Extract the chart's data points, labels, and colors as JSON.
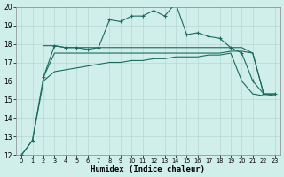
{
  "title": "",
  "xlabel": "Humidex (Indice chaleur)",
  "xlim": [
    -0.5,
    23.5
  ],
  "ylim": [
    12,
    20
  ],
  "yticks": [
    12,
    13,
    14,
    15,
    16,
    17,
    18,
    19,
    20
  ],
  "xticks": [
    0,
    1,
    2,
    3,
    4,
    5,
    6,
    7,
    8,
    9,
    10,
    11,
    12,
    13,
    14,
    15,
    16,
    17,
    18,
    19,
    20,
    21,
    22,
    23
  ],
  "bg_color": "#d0eeea",
  "grid_color": "#b8d8d4",
  "line_color": "#1a6b5e",
  "line_a": {
    "x": [
      0,
      1,
      2,
      3,
      4,
      5,
      6,
      7,
      8,
      9,
      10,
      11,
      12,
      13,
      14,
      15,
      16,
      17,
      18,
      19,
      20,
      21,
      22,
      23
    ],
    "y": [
      12.0,
      12.8,
      16.2,
      17.9,
      17.8,
      17.8,
      17.7,
      17.8,
      19.3,
      19.2,
      19.5,
      19.5,
      19.8,
      19.5,
      20.2,
      18.5,
      18.6,
      18.4,
      18.3,
      17.8,
      17.5,
      16.0,
      15.3,
      15.3
    ],
    "marker": "+"
  },
  "line_b": {
    "x": [
      2,
      3,
      4,
      5,
      6,
      7,
      8,
      9,
      10,
      11,
      12,
      13,
      14,
      15,
      16,
      17,
      18,
      19,
      20,
      21,
      22,
      23
    ],
    "y": [
      17.9,
      17.9,
      17.8,
      17.8,
      17.8,
      17.8,
      17.8,
      17.8,
      17.8,
      17.8,
      17.8,
      17.8,
      17.8,
      17.8,
      17.8,
      17.8,
      17.8,
      17.8,
      17.8,
      17.5,
      15.3,
      15.3
    ]
  },
  "line_c": {
    "x": [
      0,
      1,
      2,
      3,
      4,
      5,
      6,
      7,
      8,
      9,
      10,
      11,
      12,
      13,
      14,
      15,
      16,
      17,
      18,
      19,
      20,
      21,
      22,
      23
    ],
    "y": [
      12.0,
      12.8,
      16.0,
      16.5,
      16.6,
      16.7,
      16.8,
      16.9,
      17.0,
      17.0,
      17.1,
      17.1,
      17.2,
      17.2,
      17.3,
      17.3,
      17.3,
      17.4,
      17.4,
      17.5,
      16.0,
      15.3,
      15.2,
      15.2
    ]
  },
  "line_d": {
    "x": [
      2,
      3,
      4,
      5,
      6,
      7,
      8,
      9,
      10,
      11,
      12,
      13,
      14,
      15,
      16,
      17,
      18,
      19,
      20,
      21,
      22,
      23
    ],
    "y": [
      16.2,
      17.5,
      17.5,
      17.5,
      17.5,
      17.5,
      17.5,
      17.5,
      17.5,
      17.5,
      17.5,
      17.5,
      17.5,
      17.5,
      17.5,
      17.5,
      17.5,
      17.6,
      17.6,
      17.5,
      15.3,
      15.2
    ]
  }
}
